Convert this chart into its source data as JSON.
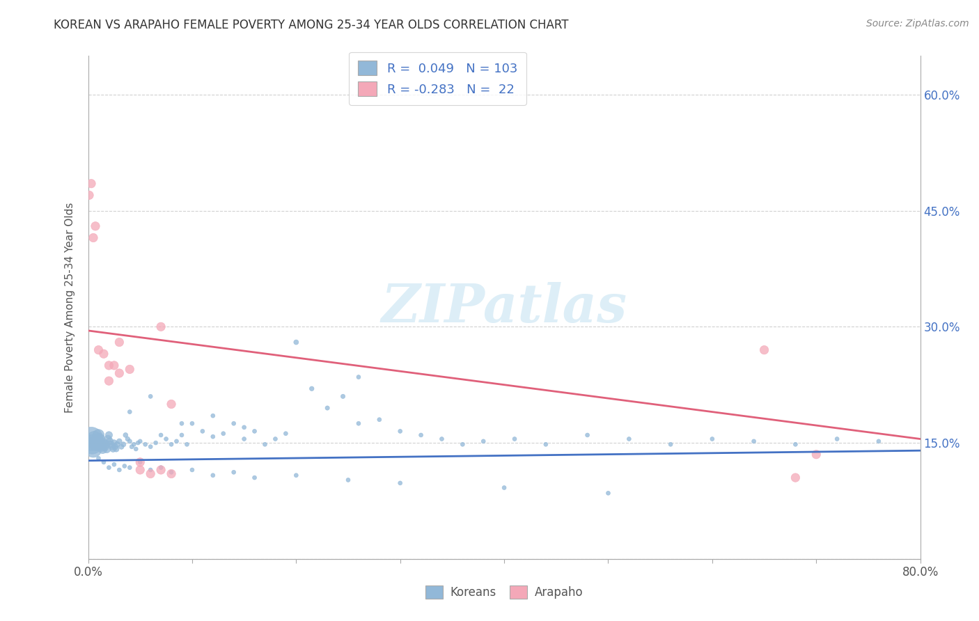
{
  "title": "KOREAN VS ARAPAHO FEMALE POVERTY AMONG 25-34 YEAR OLDS CORRELATION CHART",
  "source": "Source: ZipAtlas.com",
  "ylabel": "Female Poverty Among 25-34 Year Olds",
  "xlim": [
    0.0,
    0.8
  ],
  "ylim": [
    0.0,
    0.65
  ],
  "yticks": [
    0.0,
    0.15,
    0.3,
    0.45,
    0.6
  ],
  "xticks": [
    0.0,
    0.1,
    0.2,
    0.3,
    0.4,
    0.5,
    0.6,
    0.7,
    0.8
  ],
  "xtick_first": "0.0%",
  "xtick_last": "80.0%",
  "ytick_labels_right": [
    "",
    "15.0%",
    "30.0%",
    "45.0%",
    "60.0%"
  ],
  "watermark": "ZIPatlas",
  "korean_color": "#92b8d8",
  "arapaho_color": "#f4a8b8",
  "korean_line_color": "#4472c4",
  "arapaho_line_color": "#e0607a",
  "korean_R": 0.049,
  "korean_N": 103,
  "arapaho_R": -0.283,
  "arapaho_N": 22,
  "legend_text_color": "#4472c4",
  "korean_x": [
    0.003,
    0.004,
    0.005,
    0.006,
    0.007,
    0.008,
    0.009,
    0.01,
    0.011,
    0.012,
    0.013,
    0.014,
    0.015,
    0.016,
    0.017,
    0.018,
    0.019,
    0.02,
    0.021,
    0.022,
    0.023,
    0.024,
    0.025,
    0.026,
    0.027,
    0.028,
    0.03,
    0.032,
    0.034,
    0.036,
    0.038,
    0.04,
    0.042,
    0.044,
    0.046,
    0.048,
    0.05,
    0.055,
    0.06,
    0.065,
    0.07,
    0.075,
    0.08,
    0.085,
    0.09,
    0.095,
    0.1,
    0.11,
    0.12,
    0.13,
    0.14,
    0.15,
    0.16,
    0.17,
    0.18,
    0.19,
    0.2,
    0.215,
    0.23,
    0.245,
    0.26,
    0.28,
    0.3,
    0.32,
    0.34,
    0.36,
    0.38,
    0.41,
    0.44,
    0.48,
    0.52,
    0.56,
    0.6,
    0.64,
    0.68,
    0.72,
    0.76,
    0.01,
    0.015,
    0.02,
    0.025,
    0.03,
    0.035,
    0.04,
    0.05,
    0.06,
    0.07,
    0.08,
    0.1,
    0.12,
    0.14,
    0.16,
    0.2,
    0.25,
    0.3,
    0.4,
    0.5,
    0.04,
    0.06,
    0.09,
    0.12,
    0.15,
    0.26
  ],
  "korean_y": [
    0.155,
    0.148,
    0.142,
    0.155,
    0.15,
    0.148,
    0.152,
    0.16,
    0.155,
    0.148,
    0.145,
    0.142,
    0.15,
    0.145,
    0.148,
    0.142,
    0.155,
    0.16,
    0.152,
    0.148,
    0.145,
    0.142,
    0.15,
    0.145,
    0.142,
    0.148,
    0.152,
    0.145,
    0.148,
    0.16,
    0.155,
    0.152,
    0.145,
    0.148,
    0.142,
    0.15,
    0.152,
    0.148,
    0.145,
    0.15,
    0.16,
    0.155,
    0.148,
    0.152,
    0.16,
    0.148,
    0.175,
    0.165,
    0.158,
    0.162,
    0.175,
    0.155,
    0.165,
    0.148,
    0.155,
    0.162,
    0.28,
    0.22,
    0.195,
    0.21,
    0.175,
    0.18,
    0.165,
    0.16,
    0.155,
    0.148,
    0.152,
    0.155,
    0.148,
    0.16,
    0.155,
    0.148,
    0.155,
    0.152,
    0.148,
    0.155,
    0.152,
    0.13,
    0.125,
    0.118,
    0.122,
    0.115,
    0.12,
    0.118,
    0.125,
    0.115,
    0.118,
    0.112,
    0.115,
    0.108,
    0.112,
    0.105,
    0.108,
    0.102,
    0.098,
    0.092,
    0.085,
    0.19,
    0.21,
    0.175,
    0.185,
    0.17,
    0.235
  ],
  "korean_sizes": [
    600,
    400,
    300,
    250,
    200,
    180,
    160,
    140,
    120,
    110,
    100,
    90,
    80,
    75,
    70,
    65,
    60,
    55,
    50,
    48,
    45,
    42,
    40,
    38,
    36,
    34,
    30,
    28,
    26,
    24,
    22,
    20,
    20,
    18,
    18,
    18,
    18,
    18,
    18,
    18,
    18,
    18,
    18,
    18,
    18,
    18,
    18,
    18,
    18,
    18,
    18,
    18,
    18,
    18,
    18,
    18,
    25,
    22,
    20,
    20,
    18,
    18,
    18,
    18,
    18,
    18,
    18,
    18,
    18,
    18,
    18,
    18,
    18,
    18,
    18,
    18,
    18,
    18,
    18,
    18,
    18,
    18,
    18,
    18,
    18,
    18,
    18,
    18,
    18,
    18,
    18,
    18,
    18,
    18,
    18,
    18,
    18,
    18,
    18,
    18,
    18,
    18,
    18
  ],
  "arapaho_x": [
    0.001,
    0.003,
    0.005,
    0.007,
    0.01,
    0.015,
    0.02,
    0.025,
    0.03,
    0.04,
    0.05,
    0.06,
    0.07,
    0.08,
    0.02,
    0.03,
    0.05,
    0.08,
    0.65,
    0.7,
    0.68,
    0.07
  ],
  "arapaho_y": [
    0.47,
    0.485,
    0.415,
    0.43,
    0.27,
    0.265,
    0.25,
    0.25,
    0.24,
    0.245,
    0.115,
    0.11,
    0.115,
    0.2,
    0.23,
    0.28,
    0.125,
    0.11,
    0.27,
    0.135,
    0.105,
    0.3
  ],
  "arapaho_sizes": [
    80,
    80,
    80,
    80,
    80,
    80,
    80,
    80,
    80,
    80,
    80,
    80,
    80,
    80,
    80,
    80,
    80,
    80,
    80,
    80,
    80,
    80
  ],
  "legend_korean_label": "Koreans",
  "legend_arapaho_label": "Arapaho",
  "background_color": "#ffffff",
  "grid_color": "#cccccc",
  "korean_line_y0": 0.127,
  "korean_line_y1": 0.14,
  "arapaho_line_y0": 0.295,
  "arapaho_line_y1": 0.155
}
